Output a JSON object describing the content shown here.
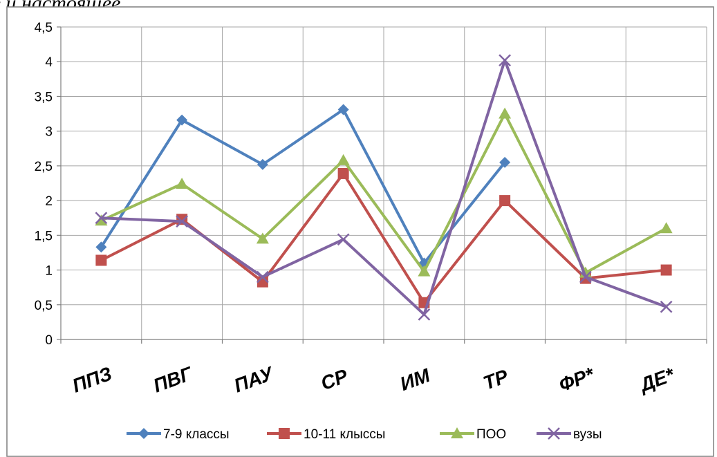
{
  "top_text": ", будущее и настоящее.",
  "chart_data": {
    "type": "line",
    "categories": [
      "ППЗ",
      "ПВГ",
      "ПАУ",
      "СР",
      "ИМ",
      "ТР",
      "ФР*",
      "ДЕ*"
    ],
    "y_tick_labels": [
      "0",
      "0,5",
      "1",
      "1,5",
      "2",
      "2,5",
      "3",
      "3,5",
      "4",
      "4,5"
    ],
    "ylim": [
      0,
      4.5
    ],
    "grid": true,
    "legend_position": "bottom",
    "series": [
      {
        "name": "7-9 классы",
        "color": "#4f81bd",
        "marker": "diamond",
        "values": [
          1.33,
          3.16,
          2.52,
          3.31,
          1.1,
          2.55,
          null,
          null
        ]
      },
      {
        "name": "10-11 клыссы",
        "color": "#c0504d",
        "marker": "square",
        "values": [
          1.14,
          1.73,
          0.83,
          2.39,
          0.53,
          2.0,
          0.88,
          1.0
        ]
      },
      {
        "name": "ПОО",
        "color": "#9bbb59",
        "marker": "triangle",
        "values": [
          1.71,
          2.24,
          1.45,
          2.58,
          0.98,
          3.25,
          0.96,
          1.6
        ]
      },
      {
        "name": "вузы",
        "color": "#8064a2",
        "marker": "x",
        "values": [
          1.75,
          1.7,
          0.9,
          1.44,
          0.36,
          4.02,
          0.9,
          0.47
        ]
      }
    ]
  }
}
